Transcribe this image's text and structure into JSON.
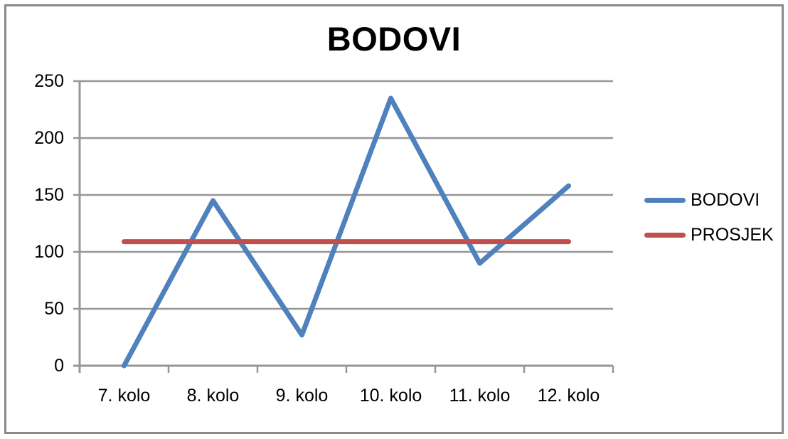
{
  "frame": {
    "border_color": "#8a8a8a",
    "background": "#ffffff"
  },
  "chart_data": {
    "type": "line",
    "title": "BODOVI",
    "categories": [
      "7. kolo",
      "8. kolo",
      "9. kolo",
      "10. kolo",
      "11. kolo",
      "12. kolo"
    ],
    "series": [
      {
        "name": "BODOVI",
        "color": "#4f81bd",
        "values": [
          0,
          145,
          27,
          235,
          90,
          158
        ]
      },
      {
        "name": "PROSJEK",
        "color": "#c0504d",
        "values": [
          109,
          109,
          109,
          109,
          109,
          109
        ]
      }
    ],
    "ylim": [
      0,
      250
    ],
    "yticks": [
      0,
      50,
      100,
      150,
      200,
      250
    ],
    "xlabel": "",
    "ylabel": "",
    "grid": "horizontal",
    "gridline_color": "#969696",
    "axis_color": "#969696",
    "legend_position": "right",
    "text_color": "#000000"
  }
}
